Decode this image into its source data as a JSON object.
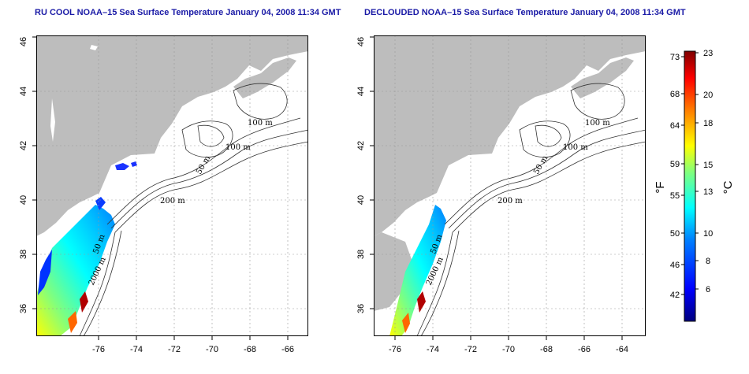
{
  "titles": {
    "left": "RU COOL NOAA–15 Sea Surface Temperature January 04, 2008 11:34 GMT",
    "right": "DECLOUDED NOAA–15 Sea Surface Temperature January 04, 2008 11:34 GMT"
  },
  "axes": {
    "x_ticks": [
      "-76",
      "-74",
      "-72",
      "-70",
      "-68",
      "-66",
      "-64"
    ],
    "y_ticks": [
      "36",
      "38",
      "40",
      "42",
      "44",
      "46"
    ]
  },
  "contour_labels": {
    "d100a": "100 m",
    "d100b": "100 m",
    "d50a": "50 m",
    "d200": "200 m",
    "d50b": "50 m",
    "d2000": "2000 m"
  },
  "colorbar": {
    "fahrenheit_ticks": [
      "73",
      "68",
      "64",
      "59",
      "55",
      "50",
      "46",
      "42"
    ],
    "celsius_ticks": [
      "23",
      "20",
      "18",
      "15",
      "13",
      "10",
      "8",
      "6"
    ],
    "unit_f": "°F",
    "unit_c": "°C"
  },
  "colors": {
    "land": "#bdbdbd",
    "water": "#ffffff",
    "title": "#1a1aa6",
    "sst_scale": [
      "#00007f",
      "#0000ff",
      "#007fff",
      "#00ffff",
      "#7fff7f",
      "#ffff00",
      "#ff7f00",
      "#ff0000",
      "#7f0000"
    ]
  }
}
